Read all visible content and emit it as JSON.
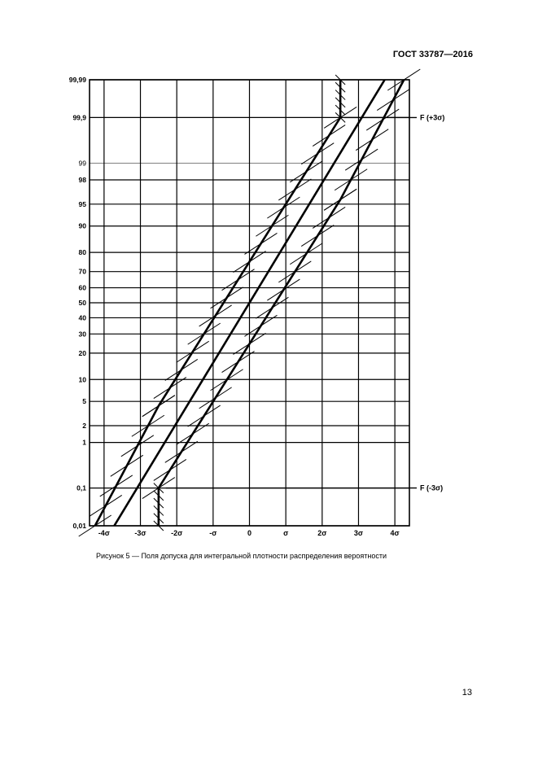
{
  "header": {
    "doc_id": "ГОСТ 33787—2016"
  },
  "caption": "Рисунок 5 — Поля допуска для интегральной плотности распределения вероятности",
  "page_number": "13",
  "chart_data": {
    "type": "line",
    "xlim": [
      -4.4,
      4.4
    ],
    "y_scale": "normal-probability",
    "x_ticks": [
      {
        "v": -4,
        "label": "-4σ"
      },
      {
        "v": -3,
        "label": "-3σ"
      },
      {
        "v": -2,
        "label": "-2σ"
      },
      {
        "v": -1,
        "label": "-σ"
      },
      {
        "v": 0,
        "label": "0"
      },
      {
        "v": 1,
        "label": "σ"
      },
      {
        "v": 2,
        "label": "2σ"
      },
      {
        "v": 3,
        "label": "3σ"
      },
      {
        "v": 4,
        "label": "4σ"
      }
    ],
    "y_ticks": [
      {
        "z": -3.72,
        "label": "0,01"
      },
      {
        "z": -3.09,
        "label": "0,1"
      },
      {
        "z": -2.33,
        "label": "1"
      },
      {
        "z": -2.05,
        "label": "2"
      },
      {
        "z": -1.645,
        "label": "5"
      },
      {
        "z": -1.28,
        "label": "10"
      },
      {
        "z": -0.84,
        "label": "20"
      },
      {
        "z": -0.52,
        "label": "30"
      },
      {
        "z": -0.25,
        "label": "40"
      },
      {
        "z": 0.0,
        "label": "50"
      },
      {
        "z": 0.25,
        "label": "60"
      },
      {
        "z": 0.52,
        "label": "70"
      },
      {
        "z": 0.84,
        "label": "80"
      },
      {
        "z": 1.28,
        "label": "90"
      },
      {
        "z": 1.645,
        "label": "95"
      },
      {
        "z": 2.05,
        "label": "98"
      },
      {
        "z": 2.33,
        "label": "99",
        "thin": true
      },
      {
        "z": 3.09,
        "label": "99,9"
      },
      {
        "z": 3.72,
        "label": "99,99"
      }
    ],
    "series": [
      {
        "key": "center",
        "points": [
          [
            -3.72,
            -3.72
          ],
          [
            3.72,
            3.72
          ]
        ]
      },
      {
        "key": "upper",
        "points": [
          [
            -4.25,
            -3.72
          ],
          [
            -2.5,
            -1.72
          ],
          [
            2.5,
            3.09
          ],
          [
            2.5,
            3.72
          ]
        ]
      },
      {
        "key": "lower",
        "points": [
          [
            -2.5,
            -3.72
          ],
          [
            -2.5,
            -3.09
          ],
          [
            2.5,
            1.72
          ],
          [
            4.25,
            3.72
          ]
        ]
      }
    ],
    "limit_labels": [
      {
        "text": "F (+3σ)",
        "z": 3.09
      },
      {
        "text": "F (-3σ)",
        "z": -3.09
      }
    ]
  }
}
